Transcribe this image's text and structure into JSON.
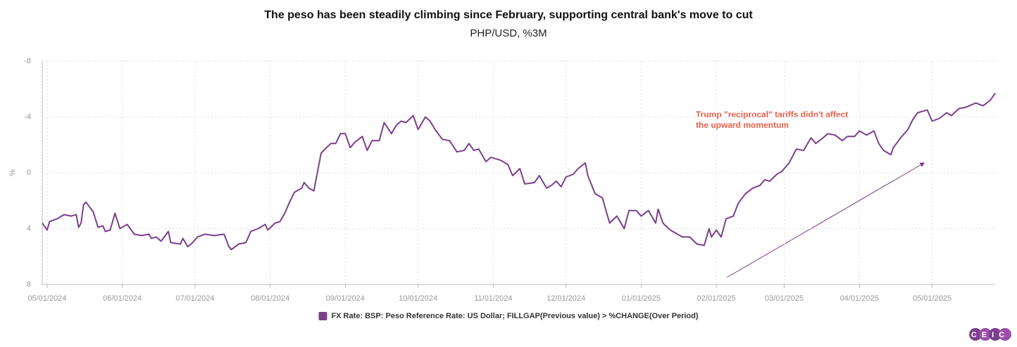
{
  "chart_data": {
    "type": "line",
    "title": "The peso has been steadily climbing since February, supporting central bank's move to cut",
    "subtitle": "PHP/USD, %3M",
    "y_label": "%",
    "annotation": [
      "Trump \"reciprocal\" tariffs didn't affect",
      "the upward momentum"
    ],
    "logo": "CEIC",
    "x": [
      "04/29/2024",
      "05/01/2024",
      "05/02/2024",
      "05/05/2024",
      "05/08/2024",
      "05/11/2024",
      "05/13/2024",
      "05/14/2024",
      "05/15/2024",
      "05/16/2024",
      "05/17/2024",
      "05/20/2024",
      "05/22/2024",
      "05/24/2024",
      "05/25/2024",
      "05/27/2024",
      "05/29/2024",
      "05/31/2024",
      "06/03/2024",
      "06/06/2024",
      "06/09/2024",
      "06/12/2024",
      "06/13/2024",
      "06/15/2024",
      "06/17/2024",
      "06/20/2024",
      "06/21/2024",
      "06/25/2024",
      "06/26/2024",
      "06/28/2024",
      "06/30/2024",
      "07/02/2024",
      "07/05/2024",
      "07/09/2024",
      "07/13/2024",
      "07/15/2024",
      "07/16/2024",
      "07/19/2024",
      "07/22/2024",
      "07/24/2024",
      "07/27/2024",
      "07/30/2024",
      "07/31/2024",
      "08/03/2024",
      "08/05/2024",
      "08/07/2024",
      "08/09/2024",
      "08/11/2024",
      "08/14/2024",
      "08/15/2024",
      "08/17/2024",
      "08/19/2024",
      "08/22/2024",
      "08/23/2024",
      "08/26/2024",
      "08/28/2024",
      "08/30/2024",
      "09/01/2024",
      "09/03/2024",
      "09/05/2024",
      "09/08/2024",
      "09/10/2024",
      "09/12/2024",
      "09/15/2024",
      "09/17/2024",
      "09/20/2024",
      "09/22/2024",
      "09/24/2024",
      "09/26/2024",
      "09/29/2024",
      "10/01/2024",
      "10/04/2024",
      "10/06/2024",
      "10/08/2024",
      "10/11/2024",
      "10/14/2024",
      "10/17/2024",
      "10/20/2024",
      "10/22/2024",
      "10/24/2024",
      "10/26/2024",
      "10/29/2024",
      "10/31/2024",
      "11/04/2024",
      "11/07/2024",
      "11/09/2024",
      "11/12/2024",
      "11/14/2024",
      "11/18/2024",
      "11/20/2024",
      "11/23/2024",
      "11/25/2024",
      "11/27/2024",
      "11/29/2024",
      "12/01/2024",
      "12/04/2024",
      "12/06/2024",
      "12/09/2024",
      "12/10/2024",
      "12/13/2024",
      "12/16/2024",
      "12/19/2024",
      "12/22/2024",
      "12/25/2024",
      "12/27/2024",
      "12/30/2024",
      "01/01/2025",
      "01/04/2025",
      "01/07/2025",
      "01/08/2025",
      "01/10/2025",
      "01/13/2025",
      "01/16/2025",
      "01/18/2025",
      "01/21/2025",
      "01/24/2025",
      "01/27/2025",
      "01/29/2025",
      "01/30/2025",
      "02/01/2025",
      "02/03/2025",
      "02/05/2025",
      "02/08/2025",
      "02/10/2025",
      "02/13/2025",
      "02/16/2025",
      "02/19/2025",
      "02/21/2025",
      "02/23/2025",
      "02/26/2025",
      "02/28/2025",
      "03/03/2025",
      "03/06/2025",
      "03/09/2025",
      "03/12/2025",
      "03/14/2025",
      "03/17/2025",
      "03/19/2025",
      "03/22/2025",
      "03/25/2025",
      "03/27/2025",
      "03/30/2025",
      "04/01/2025",
      "04/04/2025",
      "04/07/2025",
      "04/09/2025",
      "04/11/2025",
      "04/14/2025",
      "04/15/2025",
      "04/18/2025",
      "04/21/2025",
      "04/23/2025",
      "04/25/2025",
      "04/29/2025",
      "05/01/2025",
      "05/04/2025",
      "05/07/2025",
      "05/09/2025",
      "05/12/2025",
      "05/15/2025",
      "05/19/2025",
      "05/22/2025",
      "05/25/2025",
      "05/27/2025"
    ],
    "series": [
      {
        "name": "FX Rate: BSP: Peso Reference Rate: US Dollar; FILLGAP(Previous value) > %CHANGE(Over Period)",
        "color": "#7b3f8c",
        "values": [
          3.6,
          4.1,
          3.5,
          3.3,
          3.0,
          3.1,
          3.0,
          3.9,
          3.6,
          2.3,
          2.1,
          2.8,
          3.9,
          3.8,
          4.2,
          4.1,
          2.9,
          4.0,
          3.7,
          4.4,
          4.5,
          4.4,
          4.7,
          4.6,
          4.9,
          4.2,
          5.0,
          5.1,
          4.7,
          5.3,
          5.0,
          4.6,
          4.4,
          4.5,
          4.4,
          5.3,
          5.5,
          5.1,
          5.0,
          4.2,
          4.0,
          3.7,
          4.1,
          3.6,
          3.5,
          2.9,
          2.1,
          1.4,
          1.1,
          0.7,
          1.1,
          1.3,
          -1.4,
          -1.6,
          -2.1,
          -2.1,
          -2.8,
          -2.8,
          -1.8,
          -2.2,
          -2.6,
          -1.6,
          -2.3,
          -2.3,
          -3.6,
          -2.8,
          -3.4,
          -3.7,
          -3.6,
          -4.1,
          -3.1,
          -4.0,
          -3.7,
          -3.1,
          -2.4,
          -2.3,
          -1.5,
          -1.6,
          -2.1,
          -1.6,
          -1.7,
          -0.8,
          -1.1,
          -0.9,
          -0.6,
          0.2,
          -0.3,
          0.8,
          0.7,
          0.2,
          1.1,
          0.9,
          0.6,
          1.0,
          0.3,
          0.1,
          -0.3,
          -0.7,
          0.2,
          1.5,
          1.8,
          3.6,
          3.1,
          4.0,
          2.7,
          2.7,
          3.1,
          2.7,
          3.6,
          2.6,
          3.6,
          4.1,
          4.4,
          4.6,
          4.6,
          5.1,
          5.2,
          4.0,
          4.6,
          4.1,
          4.6,
          3.3,
          3.1,
          2.2,
          1.5,
          1.1,
          0.9,
          0.5,
          0.6,
          0.1,
          -0.1,
          -0.7,
          -1.7,
          -1.6,
          -2.5,
          -2.1,
          -2.5,
          -2.8,
          -2.7,
          -2.3,
          -2.6,
          -2.6,
          -3.0,
          -2.7,
          -3.0,
          -2.1,
          -1.6,
          -1.3,
          -1.8,
          -2.5,
          -3.1,
          -3.8,
          -4.3,
          -4.5,
          -3.7,
          -3.9,
          -4.3,
          -4.1,
          -4.6,
          -4.7,
          -5.0,
          -4.8,
          -5.2,
          -5.7
        ]
      }
    ],
    "xlim": [
      "04/29/2024",
      "05/27/2025"
    ],
    "xticks": [
      "05/01/2024",
      "06/01/2024",
      "07/01/2024",
      "08/01/2024",
      "09/01/2024",
      "10/01/2024",
      "11/01/2024",
      "12/01/2024",
      "01/01/2025",
      "02/01/2025",
      "03/01/2025",
      "04/01/2025",
      "05/01/2025"
    ],
    "ylim": [
      8,
      -8
    ],
    "yticks": [
      8,
      4,
      0,
      -4,
      -8
    ],
    "grid": true,
    "legend": "bottom"
  }
}
